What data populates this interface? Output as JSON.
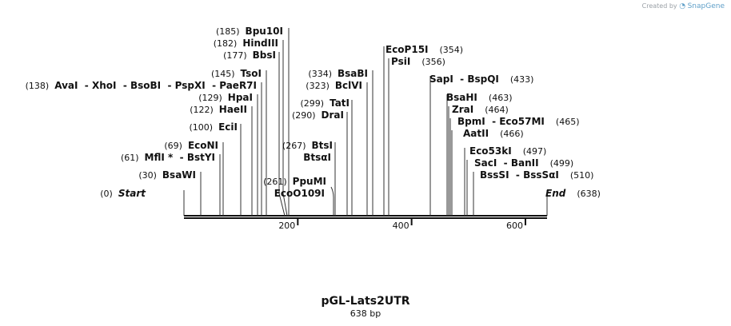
{
  "credit": {
    "text": "Created by",
    "brand": "SnapGene",
    "logo_icon": "snapgene-logo-icon"
  },
  "sequence": {
    "name": "pGL-Lats2UTR",
    "length_label": "638 bp",
    "length": 638
  },
  "axis": {
    "ticks": [
      200,
      400,
      600
    ]
  },
  "sites": [
    {
      "pos": 0,
      "pos_label": "(0)",
      "names": [
        "Start"
      ]
    },
    {
      "pos": 30,
      "pos_label": "(30)",
      "names": [
        "BsaWI"
      ]
    },
    {
      "pos": 61,
      "pos_label": "(61)",
      "names": [
        "MflI *",
        "BstYI"
      ]
    },
    {
      "pos": 69,
      "pos_label": "(69)",
      "names": [
        "EcoNI"
      ]
    },
    {
      "pos": 100,
      "pos_label": "(100)",
      "names": [
        "EciI"
      ]
    },
    {
      "pos": 122,
      "pos_label": "(122)",
      "names": [
        "HaeII"
      ]
    },
    {
      "pos": 129,
      "pos_label": "(129)",
      "names": [
        "HpaI"
      ]
    },
    {
      "pos": 138,
      "pos_label": "(138)",
      "names": [
        "AvaI",
        "XhoI",
        "BsoBI",
        "PspXI",
        "PaeR7I"
      ]
    },
    {
      "pos": 145,
      "pos_label": "(145)",
      "names": [
        "TsoI"
      ]
    },
    {
      "pos": 177,
      "pos_label": "(177)",
      "names": [
        "BbsI"
      ]
    },
    {
      "pos": 182,
      "pos_label": "(182)",
      "names": [
        "HindIII"
      ]
    },
    {
      "pos": 185,
      "pos_label": "(185)",
      "names": [
        "Bpu10I"
      ]
    },
    {
      "pos": 261,
      "pos_label": "(261)",
      "names": [
        "PpuMI"
      ]
    },
    {
      "pos": 261,
      "pos_label": "",
      "names": [
        "EcoO109I"
      ]
    },
    {
      "pos": 267,
      "pos_label": "(267)",
      "names": [
        "BtsI"
      ]
    },
    {
      "pos": 267,
      "pos_label": "",
      "names": [
        "BtsαI"
      ]
    },
    {
      "pos": 290,
      "pos_label": "(290)",
      "names": [
        "DraI"
      ]
    },
    {
      "pos": 299,
      "pos_label": "(299)",
      "names": [
        "TatI"
      ]
    },
    {
      "pos": 323,
      "pos_label": "(323)",
      "names": [
        "BclVI"
      ]
    },
    {
      "pos": 334,
      "pos_label": "(334)",
      "names": [
        "BsaBI"
      ]
    },
    {
      "pos": 354,
      "pos_label": "(354)",
      "names": [
        "EcoP15I"
      ]
    },
    {
      "pos": 356,
      "pos_label": "(356)",
      "names": [
        "PsiI"
      ]
    },
    {
      "pos": 433,
      "pos_label": "(433)",
      "names": [
        "SapI",
        "BspQI"
      ]
    },
    {
      "pos": 463,
      "pos_label": "(463)",
      "names": [
        "BsaHI"
      ]
    },
    {
      "pos": 464,
      "pos_label": "(464)",
      "names": [
        "ZraI"
      ]
    },
    {
      "pos": 465,
      "pos_label": "(465)",
      "names": [
        "BpmI",
        "Eco57MI"
      ]
    },
    {
      "pos": 466,
      "pos_label": "(466)",
      "names": [
        "AatII"
      ]
    },
    {
      "pos": 497,
      "pos_label": "(497)",
      "names": [
        "Eco53kI"
      ]
    },
    {
      "pos": 499,
      "pos_label": "(499)",
      "names": [
        "SacI",
        "BanII"
      ]
    },
    {
      "pos": 510,
      "pos_label": "(510)",
      "names": [
        "BssSI",
        "BssSαI"
      ]
    },
    {
      "pos": 638,
      "pos_label": "(638)",
      "names": [
        "End"
      ]
    }
  ]
}
